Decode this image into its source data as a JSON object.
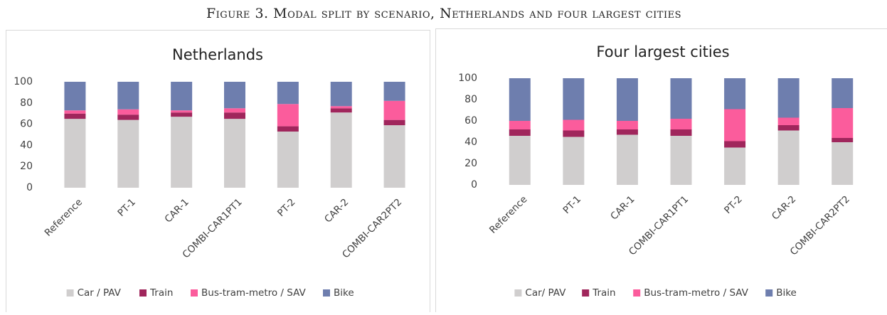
{
  "figure_title": "Figure 3. Modal split by scenario, Netherlands and four largest cities",
  "chart_data": [
    {
      "type": "stacked_bar",
      "title": "Netherlands",
      "categories": [
        "Reference",
        "PT-1",
        "CAR-1",
        "COMBI-CAR1PT1",
        "PT-2",
        "CAR-2",
        "COMBI-CAR2PT2"
      ],
      "series": [
        {
          "name": "Car / PAV",
          "color": "#d0cece",
          "values": [
            65,
            64,
            67,
            65,
            53,
            71,
            59
          ]
        },
        {
          "name": "Train",
          "color": "#a0265c",
          "values": [
            5,
            5,
            4,
            6,
            5,
            4,
            5
          ]
        },
        {
          "name": "Bus-tram-metro / SAV",
          "color": "#fb5c9c",
          "values": [
            3,
            5,
            2,
            4,
            21,
            2,
            18
          ]
        },
        {
          "name": "Bike",
          "color": "#6e7eae",
          "values": [
            27,
            26,
            27,
            25,
            21,
            23,
            18
          ]
        }
      ],
      "ylim": [
        0,
        100
      ],
      "yticks": [
        0,
        20,
        40,
        60,
        80,
        100
      ],
      "legend": "bottom"
    },
    {
      "type": "stacked_bar",
      "title": "Four largest cities",
      "categories": [
        "Reference",
        "PT-1",
        "CAR-1",
        "COMBI-CAR1PT1",
        "PT-2",
        "CAR-2",
        "COMBI-CAR2PT2"
      ],
      "series": [
        {
          "name": "Car/ PAV",
          "color": "#d0cece",
          "values": [
            46,
            45,
            47,
            46,
            35,
            51,
            40
          ]
        },
        {
          "name": "Train",
          "color": "#a0265c",
          "values": [
            6,
            6,
            5,
            6,
            6,
            5,
            4
          ]
        },
        {
          "name": "Bus-tram-metro / SAV",
          "color": "#fb5c9c",
          "values": [
            8,
            10,
            8,
            10,
            30,
            7,
            28
          ]
        },
        {
          "name": "Bike",
          "color": "#6e7eae",
          "values": [
            40,
            39,
            40,
            38,
            29,
            37,
            28
          ]
        }
      ],
      "ylim": [
        0,
        100
      ],
      "yticks": [
        0,
        20,
        40,
        60,
        80,
        100
      ],
      "legend": "bottom"
    }
  ]
}
